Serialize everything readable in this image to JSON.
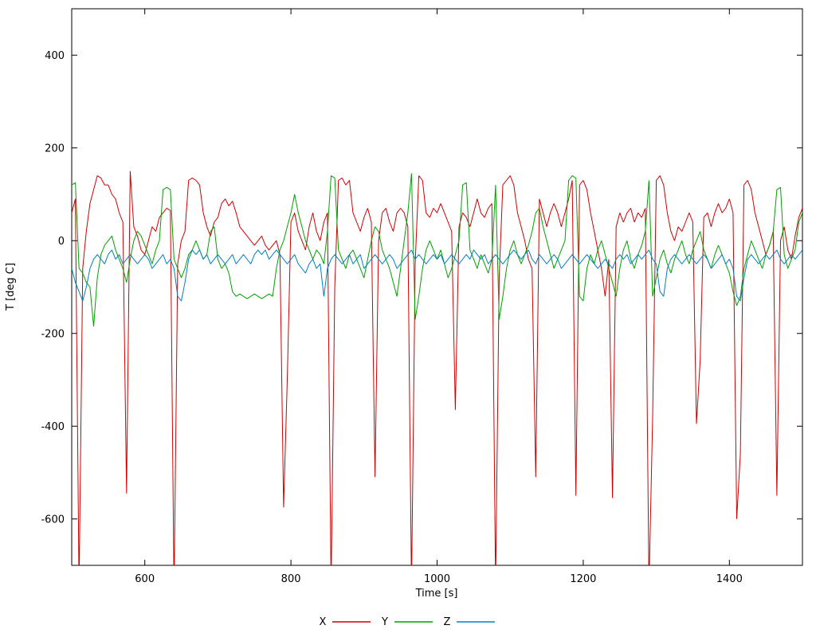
{
  "page": {
    "background": "#ffffff"
  },
  "chart_data": {
    "type": "line",
    "title": "",
    "xlabel": "Time [s]",
    "ylabel": "T [deg C]",
    "xlim": [
      500,
      1500
    ],
    "ylim": [
      -700,
      500
    ],
    "xticks": [
      600,
      800,
      1000,
      1200,
      1400
    ],
    "yticks": [
      -600,
      -400,
      -200,
      0,
      200,
      400
    ],
    "grid": false,
    "legend_position": "bottom-center",
    "x_start": 500,
    "x_step": 5,
    "axis_color": "#000000",
    "series": [
      {
        "name": "X",
        "color": "#cc0000",
        "values": [
          60,
          90,
          -750,
          -60,
          20,
          80,
          110,
          140,
          135,
          120,
          120,
          100,
          90,
          60,
          40,
          -545,
          150,
          30,
          10,
          -20,
          -30,
          0,
          30,
          20,
          50,
          60,
          70,
          65,
          -760,
          -50,
          0,
          20,
          130,
          135,
          130,
          120,
          60,
          30,
          10,
          40,
          50,
          80,
          90,
          75,
          85,
          60,
          30,
          20,
          10,
          0,
          -10,
          0,
          10,
          -10,
          -20,
          -10,
          0,
          -30,
          -575,
          -300,
          40,
          60,
          20,
          0,
          -20,
          30,
          60,
          20,
          0,
          40,
          60,
          -750,
          -100,
          130,
          135,
          120,
          130,
          60,
          40,
          20,
          50,
          70,
          40,
          -510,
          0,
          60,
          70,
          40,
          20,
          60,
          70,
          60,
          30,
          -750,
          -50,
          140,
          130,
          60,
          50,
          70,
          60,
          80,
          60,
          40,
          20,
          -365,
          30,
          60,
          50,
          30,
          60,
          90,
          60,
          50,
          70,
          80,
          -750,
          -80,
          120,
          130,
          140,
          120,
          60,
          30,
          0,
          -40,
          -60,
          -510,
          90,
          60,
          30,
          60,
          80,
          60,
          30,
          60,
          90,
          130,
          -550,
          120,
          130,
          110,
          60,
          20,
          -20,
          -60,
          -120,
          -40,
          -555,
          30,
          60,
          40,
          60,
          70,
          40,
          60,
          50,
          70,
          -750,
          -380,
          130,
          140,
          120,
          60,
          20,
          0,
          30,
          20,
          40,
          60,
          40,
          -395,
          -260,
          50,
          60,
          30,
          60,
          80,
          60,
          70,
          90,
          60,
          -600,
          -460,
          120,
          130,
          110,
          60,
          30,
          0,
          -30,
          -10,
          20,
          -550,
          0,
          30,
          -20,
          -40,
          10,
          50,
          70
        ]
      },
      {
        "name": "Y",
        "color": "#00a000",
        "values": [
          120,
          125,
          -60,
          -70,
          -90,
          -100,
          -185,
          -80,
          -30,
          -10,
          0,
          10,
          -20,
          -40,
          -60,
          -90,
          -40,
          0,
          20,
          10,
          -10,
          -30,
          -50,
          -20,
          0,
          110,
          115,
          110,
          -40,
          -60,
          -80,
          -60,
          -30,
          -20,
          0,
          -20,
          -40,
          -30,
          20,
          30,
          -40,
          -60,
          -50,
          -70,
          -110,
          -120,
          -115,
          -120,
          -125,
          -120,
          -115,
          -120,
          -125,
          -120,
          -115,
          -120,
          -60,
          -20,
          0,
          30,
          60,
          100,
          60,
          30,
          0,
          -20,
          -40,
          -20,
          -30,
          -50,
          20,
          140,
          135,
          -20,
          -40,
          -60,
          -30,
          -20,
          -40,
          -60,
          -80,
          -40,
          0,
          30,
          20,
          -20,
          -40,
          -60,
          -90,
          -120,
          -60,
          0,
          60,
          145,
          -170,
          -120,
          -60,
          -20,
          0,
          -20,
          -40,
          -20,
          -50,
          -80,
          -60,
          -30,
          0,
          120,
          125,
          -20,
          -40,
          -60,
          -30,
          -50,
          -70,
          -40,
          120,
          -170,
          -120,
          -60,
          -20,
          0,
          -30,
          -50,
          -30,
          -10,
          20,
          60,
          70,
          30,
          0,
          -30,
          -60,
          -40,
          -20,
          0,
          130,
          140,
          135,
          -120,
          -130,
          -60,
          -30,
          -50,
          -20,
          0,
          -30,
          -60,
          -90,
          -120,
          -60,
          -20,
          0,
          -40,
          -60,
          -30,
          -10,
          20,
          130,
          -120,
          -80,
          -40,
          -20,
          -50,
          -70,
          -40,
          -20,
          0,
          -30,
          -50,
          -20,
          0,
          20,
          -20,
          -40,
          -60,
          -30,
          -10,
          -30,
          -50,
          -70,
          -110,
          -140,
          -120,
          -60,
          -30,
          0,
          -20,
          -40,
          -60,
          -30,
          -10,
          20,
          110,
          115,
          -30,
          -60,
          -40,
          -20,
          40,
          60
        ]
      },
      {
        "name": "Z",
        "color": "#0080c0",
        "values": [
          -60,
          -90,
          -110,
          -130,
          -100,
          -60,
          -40,
          -30,
          -40,
          -50,
          -30,
          -20,
          -40,
          -30,
          -50,
          -40,
          -30,
          -40,
          -50,
          -40,
          -30,
          -40,
          -60,
          -50,
          -40,
          -30,
          -50,
          -40,
          -60,
          -120,
          -130,
          -90,
          -40,
          -20,
          -30,
          -20,
          -40,
          -30,
          -50,
          -40,
          -30,
          -40,
          -50,
          -40,
          -30,
          -50,
          -40,
          -30,
          -40,
          -50,
          -30,
          -20,
          -30,
          -20,
          -40,
          -30,
          -20,
          -30,
          -40,
          -50,
          -40,
          -30,
          -50,
          -60,
          -70,
          -50,
          -40,
          -60,
          -50,
          -120,
          -60,
          -40,
          -30,
          -40,
          -50,
          -40,
          -30,
          -50,
          -40,
          -30,
          -60,
          -50,
          -40,
          -30,
          -40,
          -50,
          -40,
          -30,
          -40,
          -60,
          -50,
          -40,
          -30,
          -20,
          -40,
          -30,
          -40,
          -50,
          -40,
          -30,
          -40,
          -30,
          -50,
          -40,
          -30,
          -40,
          -50,
          -40,
          -30,
          -40,
          -20,
          -30,
          -40,
          -30,
          -50,
          -40,
          -30,
          -40,
          -50,
          -40,
          -30,
          -20,
          -30,
          -40,
          -30,
          -20,
          -40,
          -50,
          -30,
          -40,
          -50,
          -40,
          -30,
          -40,
          -60,
          -50,
          -40,
          -30,
          -40,
          -50,
          -40,
          -30,
          -40,
          -50,
          -60,
          -50,
          -40,
          -50,
          -60,
          -40,
          -30,
          -40,
          -30,
          -50,
          -40,
          -30,
          -40,
          -30,
          -20,
          -40,
          -50,
          -110,
          -120,
          -60,
          -40,
          -30,
          -40,
          -50,
          -40,
          -30,
          -40,
          -50,
          -40,
          -30,
          -40,
          -60,
          -50,
          -40,
          -30,
          -50,
          -40,
          -60,
          -120,
          -130,
          -80,
          -40,
          -30,
          -40,
          -50,
          -40,
          -30,
          -40,
          -30,
          -20,
          -40,
          -50,
          -40,
          -30,
          -40,
          -30,
          -20
        ]
      }
    ]
  }
}
